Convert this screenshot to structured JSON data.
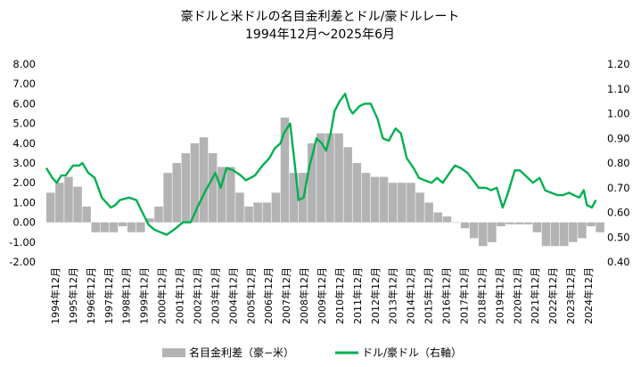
{
  "chart_data": {
    "type": "bar+line",
    "title": "豪ドルと米ドルの名目金利差とドル/豪ドルレート",
    "subtitle": "1994年12月～2025年6月",
    "y_left": {
      "ticks": [
        "8.00",
        "7.00",
        "6.00",
        "5.00",
        "4.00",
        "3.00",
        "2.00",
        "1.00",
        "0.00",
        "-1.00",
        "-2.00"
      ],
      "ylim": [
        -2,
        8
      ]
    },
    "y_right": {
      "ticks": [
        "1.20",
        "1.10",
        "1.00",
        "0.90",
        "0.80",
        "0.70",
        "0.60",
        "0.50",
        "0.40"
      ],
      "ylim": [
        0.4,
        1.2
      ]
    },
    "x_ticks": [
      "1994年12月",
      "1995年12月",
      "1996年12月",
      "1997年12月",
      "1998年12月",
      "1999年12月",
      "2000年12月",
      "2001年12月",
      "2002年12月",
      "2003年12月",
      "2004年12月",
      "2005年12月",
      "2006年12月",
      "2007年12月",
      "2008年12月",
      "2009年12月",
      "2010年12月",
      "2011年12月",
      "2012年12月",
      "2013年12月",
      "2014年12月",
      "2015年12月",
      "2016年12月",
      "2017年12月",
      "2018年12月",
      "2019年12月",
      "2020年12月",
      "2021年12月",
      "2022年12月",
      "2023年12月",
      "2024年12月"
    ],
    "series": [
      {
        "name": "名目金利差（豪−米）",
        "type": "bar",
        "axis": "left",
        "color": "#b3b3b3",
        "x": [
          1994.92,
          1995.42,
          1995.92,
          1996.42,
          1996.92,
          1997.42,
          1997.92,
          1998.42,
          1998.92,
          1999.42,
          1999.92,
          2000.42,
          2000.92,
          2001.42,
          2001.92,
          2002.42,
          2002.92,
          2003.42,
          2003.92,
          2004.42,
          2004.92,
          2005.42,
          2005.92,
          2006.42,
          2006.92,
          2007.42,
          2007.92,
          2008.42,
          2008.92,
          2009.42,
          2009.92,
          2010.42,
          2010.92,
          2011.42,
          2011.92,
          2012.42,
          2012.92,
          2013.42,
          2013.92,
          2014.42,
          2014.92,
          2015.42,
          2015.92,
          2016.42,
          2016.92,
          2017.42,
          2017.92,
          2018.42,
          2018.92,
          2019.42,
          2019.92,
          2020.42,
          2020.92,
          2021.42,
          2021.92,
          2022.42,
          2022.92,
          2023.42,
          2023.92,
          2024.42,
          2024.92,
          2025.42
        ],
        "values": [
          1.5,
          2.0,
          2.3,
          1.8,
          0.8,
          -0.5,
          -0.5,
          -0.5,
          -0.2,
          -0.5,
          -0.5,
          0.2,
          0.8,
          2.5,
          3.0,
          3.5,
          4.0,
          4.3,
          3.5,
          2.8,
          2.8,
          1.5,
          0.8,
          1.0,
          1.0,
          1.5,
          5.3,
          2.5,
          2.5,
          4.0,
          4.5,
          4.5,
          4.5,
          3.8,
          3.0,
          2.5,
          2.3,
          2.3,
          2.0,
          2.0,
          2.0,
          1.5,
          1.0,
          0.5,
          0.3,
          0.0,
          -0.3,
          -0.8,
          -1.2,
          -1.0,
          -0.2,
          -0.1,
          -0.1,
          -0.1,
          -0.5,
          -1.2,
          -1.2,
          -1.2,
          -1.0,
          -0.8,
          -0.2,
          -0.5
        ]
      },
      {
        "name": "ドル/豪ドル（右軸）",
        "type": "line",
        "axis": "right",
        "color": "#00b050",
        "x": [
          1994.92,
          1995.25,
          1995.5,
          1995.75,
          1996.0,
          1996.4,
          1996.75,
          1996.92,
          1997.25,
          1997.6,
          1998.0,
          1998.5,
          1998.75,
          1999.0,
          1999.5,
          1999.92,
          2000.25,
          2000.6,
          2000.92,
          2001.25,
          2001.6,
          2002.0,
          2002.5,
          2002.92,
          2003.3,
          2003.7,
          2004.0,
          2004.3,
          2004.6,
          2004.92,
          2005.3,
          2005.7,
          2006.0,
          2006.5,
          2006.92,
          2007.3,
          2007.6,
          2007.92,
          2008.1,
          2008.45,
          2008.7,
          2008.92,
          2009.2,
          2009.5,
          2009.92,
          2010.2,
          2010.45,
          2010.7,
          2010.92,
          2011.2,
          2011.5,
          2011.75,
          2011.92,
          2012.3,
          2012.6,
          2012.92,
          2013.3,
          2013.6,
          2013.92,
          2014.3,
          2014.6,
          2014.92,
          2015.3,
          2015.6,
          2015.92,
          2016.3,
          2016.6,
          2016.92,
          2017.3,
          2017.6,
          2017.92,
          2018.3,
          2018.6,
          2018.92,
          2019.3,
          2019.6,
          2019.92,
          2020.25,
          2020.5,
          2020.92,
          2021.2,
          2021.5,
          2021.92,
          2022.3,
          2022.6,
          2022.92,
          2023.3,
          2023.6,
          2023.92,
          2024.2,
          2024.5,
          2024.75,
          2024.92,
          2025.2,
          2025.42
        ],
        "values": [
          0.78,
          0.74,
          0.72,
          0.75,
          0.75,
          0.79,
          0.79,
          0.8,
          0.76,
          0.74,
          0.66,
          0.62,
          0.63,
          0.65,
          0.66,
          0.65,
          0.6,
          0.55,
          0.53,
          0.52,
          0.51,
          0.53,
          0.56,
          0.56,
          0.62,
          0.68,
          0.72,
          0.76,
          0.7,
          0.78,
          0.77,
          0.75,
          0.73,
          0.75,
          0.79,
          0.82,
          0.86,
          0.88,
          0.92,
          0.96,
          0.8,
          0.65,
          0.66,
          0.78,
          0.9,
          0.88,
          0.85,
          0.92,
          1.01,
          1.05,
          1.08,
          1.02,
          1.0,
          1.03,
          1.04,
          1.04,
          0.98,
          0.9,
          0.89,
          0.94,
          0.92,
          0.82,
          0.78,
          0.74,
          0.73,
          0.72,
          0.74,
          0.72,
          0.76,
          0.79,
          0.78,
          0.76,
          0.73,
          0.7,
          0.7,
          0.69,
          0.7,
          0.62,
          0.67,
          0.77,
          0.77,
          0.75,
          0.72,
          0.74,
          0.69,
          0.68,
          0.67,
          0.67,
          0.68,
          0.67,
          0.66,
          0.69,
          0.63,
          0.62,
          0.65
        ]
      }
    ],
    "grid": false,
    "legend_placement": "bottom"
  }
}
